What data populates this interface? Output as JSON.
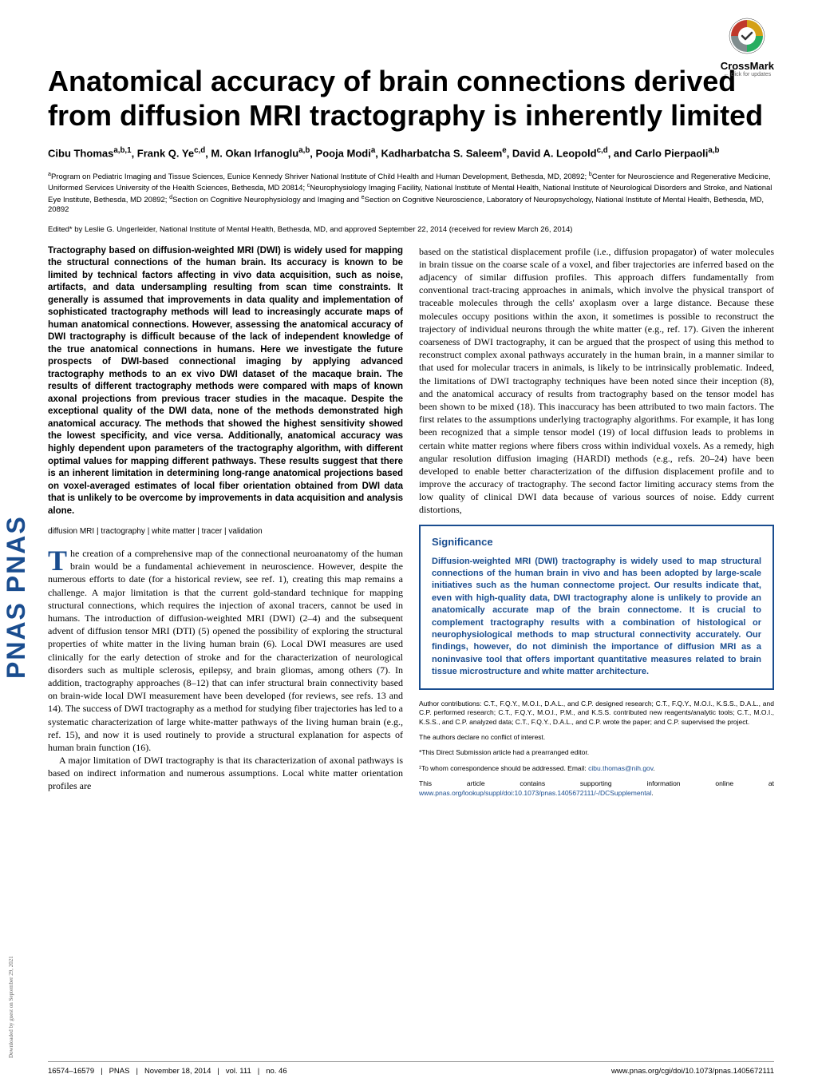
{
  "crossmark": {
    "label": "CrossMark",
    "sublabel": "← click for updates"
  },
  "sidebar": {
    "logo_text": "PNAS PNAS",
    "download_note": "Downloaded by guest on September 29, 2021"
  },
  "title": "Anatomical accuracy of brain connections derived from diffusion MRI tractography is inherently limited",
  "authors_html": "Cibu Thomas<sup>a,b,1</sup>, Frank Q. Ye<sup>c,d</sup>, M. Okan Irfanoglu<sup>a,b</sup>, Pooja Modi<sup>a</sup>, Kadharbatcha S. Saleem<sup>e</sup>, David A. Leopold<sup>c,d</sup>, and Carlo Pierpaoli<sup>a,b</sup>",
  "affiliations_html": "<sup>a</sup>Program on Pediatric Imaging and Tissue Sciences, Eunice Kennedy Shriver National Institute of Child Health and Human Development, Bethesda, MD, 20892; <sup>b</sup>Center for Neuroscience and Regenerative Medicine, Uniformed Services University of the Health Sciences, Bethesda, MD 20814; <sup>c</sup>Neurophysiology Imaging Facility, National Institute of Mental Health, National Institute of Neurological Disorders and Stroke, and National Eye Institute, Bethesda, MD 20892; <sup>d</sup>Section on Cognitive Neurophysiology and Imaging and <sup>e</sup>Section on Cognitive Neuroscience, Laboratory of Neuropsychology, National Institute of Mental Health, Bethesda, MD, 20892",
  "edited_by": "Edited* by Leslie G. Ungerleider, National Institute of Mental Health, Bethesda, MD, and approved September 22, 2014 (received for review March 26, 2014)",
  "abstract": "Tractography based on diffusion-weighted MRI (DWI) is widely used for mapping the structural connections of the human brain. Its accuracy is known to be limited by technical factors affecting in vivo data acquisition, such as noise, artifacts, and data undersampling resulting from scan time constraints. It generally is assumed that improvements in data quality and implementation of sophisticated tractography methods will lead to increasingly accurate maps of human anatomical connections. However, assessing the anatomical accuracy of DWI tractography is difficult because of the lack of independent knowledge of the true anatomical connections in humans. Here we investigate the future prospects of DWI-based connectional imaging by applying advanced tractography methods to an ex vivo DWI dataset of the macaque brain. The results of different tractography methods were compared with maps of known axonal projections from previous tracer studies in the macaque. Despite the exceptional quality of the DWI data, none of the methods demonstrated high anatomical accuracy. The methods that showed the highest sensitivity showed the lowest specificity, and vice versa. Additionally, anatomical accuracy was highly dependent upon parameters of the tractography algorithm, with different optimal values for mapping different pathways. These results suggest that there is an inherent limitation in determining long-range anatomical projections based on voxel-averaged estimates of local fiber orientation obtained from DWI data that is unlikely to be overcome by improvements in data acquisition and analysis alone.",
  "keywords": "diffusion MRI | tractography | white matter | tracer | validation",
  "body_left_p1_first": "T",
  "body_left_p1": "he creation of a comprehensive map of the connectional neuroanatomy of the human brain would be a fundamental achievement in neuroscience. However, despite the numerous efforts to date (for a historical review, see ref. 1), creating this map remains a challenge. A major limitation is that the current gold-standard technique for mapping structural connections, which requires the injection of axonal tracers, cannot be used in humans. The introduction of diffusion-weighted MRI (DWI) (2–4) and the subsequent advent of diffusion tensor MRI (DTI) (5) opened the possibility of exploring the structural properties of white matter in the living human brain (6). Local DWI measures are used clinically for the early detection of stroke and for the characterization of neurological disorders such as multiple sclerosis, epilepsy, and brain gliomas, among others (7). In addition, tractography approaches (8–12) that can infer structural brain connectivity based on brain-wide local DWI measurement have been developed (for reviews, see refs. 13 and 14). The success of DWI tractography as a method for studying fiber trajectories has led to a systematic characterization of large white-matter pathways of the living human brain (e.g., ref. 15), and now it is used routinely to provide a structural explanation for aspects of human brain function (16).",
  "body_left_p2": "A major limitation of DWI tractography is that its characterization of axonal pathways is based on indirect information and numerous assumptions. Local white matter orientation profiles are",
  "body_right_p1": "based on the statistical displacement profile (i.e., diffusion propagator) of water molecules in brain tissue on the coarse scale of a voxel, and fiber trajectories are inferred based on the adjacency of similar diffusion profiles. This approach differs fundamentally from conventional tract-tracing approaches in animals, which involve the physical transport of traceable molecules through the cells' axoplasm over a large distance. Because these molecules occupy positions within the axon, it sometimes is possible to reconstruct the trajectory of individual neurons through the white matter (e.g., ref. 17). Given the inherent coarseness of DWI tractography, it can be argued that the prospect of using this method to reconstruct complex axonal pathways accurately in the human brain, in a manner similar to that used for molecular tracers in animals, is likely to be intrinsically problematic. Indeed, the limitations of DWI tractography techniques have been noted since their inception (8), and the anatomical accuracy of results from tractography based on the tensor model has been shown to be mixed (18). This inaccuracy has been attributed to two main factors. The first relates to the assumptions underlying tractography algorithms. For example, it has long been recognized that a simple tensor model (19) of local diffusion leads to problems in certain white matter regions where fibers cross within individual voxels. As a remedy, high angular resolution diffusion imaging (HARDI) methods (e.g., refs. 20–24) have been developed to enable better characterization of the diffusion displacement profile and to improve the accuracy of tractography. The second factor limiting accuracy stems from the low quality of clinical DWI data because of various sources of noise. Eddy current distortions,",
  "significance": {
    "title": "Significance",
    "text": "Diffusion-weighted MRI (DWI) tractography is widely used to map structural connections of the human brain in vivo and has been adopted by large-scale initiatives such as the human connectome project. Our results indicate that, even with high-quality data, DWI tractography alone is unlikely to provide an anatomically accurate map of the brain connectome. It is crucial to complement tractography results with a combination of histological or neurophysiological methods to map structural connectivity accurately. Our findings, however, do not diminish the importance of diffusion MRI as a noninvasive tool that offers important quantitative measures related to brain tissue microstructure and white matter architecture."
  },
  "author_contributions": "Author contributions: C.T., F.Q.Y., M.O.I., D.A.L., and C.P. designed research; C.T., F.Q.Y., M.O.I., K.S.S., D.A.L., and C.P. performed research; C.T., F.Q.Y., M.O.I., P.M., and K.S.S. contributed new reagents/analytic tools; C.T., M.O.I., K.S.S., and C.P. analyzed data; C.T., F.Q.Y., D.A.L., and C.P. wrote the paper; and C.P. supervised the project.",
  "conflict": "The authors declare no conflict of interest.",
  "direct_submission": "*This Direct Submission article had a prearranged editor.",
  "correspondence_prefix": "¹To whom correspondence should be addressed. Email: ",
  "correspondence_email": "cibu.thomas@nih.gov",
  "correspondence_suffix": ".",
  "supporting_prefix": "This article contains supporting information online at ",
  "supporting_link": "www.pnas.org/lookup/suppl/doi:10.1073/pnas.1405672111/-/DCSupplemental",
  "supporting_suffix": ".",
  "footer": {
    "pages": "16574–16579",
    "journal": "PNAS",
    "date": "November 18, 2014",
    "volume": "vol. 111",
    "issue": "no. 46",
    "doi": "www.pnas.org/cgi/doi/10.1073/pnas.1405672111"
  },
  "colors": {
    "pnas_blue": "#1a4d8f",
    "crossmark_yellow": "#d4a017",
    "crossmark_red": "#c0392b",
    "crossmark_green": "#27ae60",
    "crossmark_gray": "#7f8c8d"
  }
}
